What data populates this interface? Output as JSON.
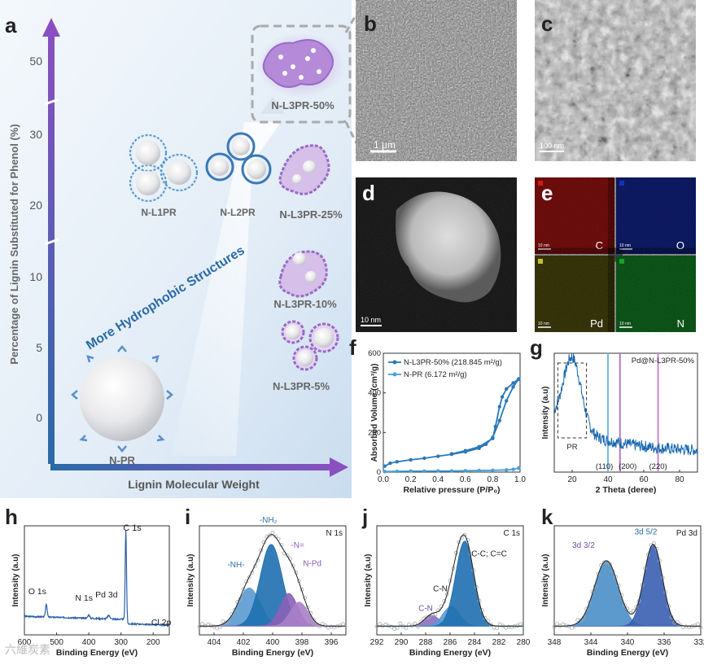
{
  "panel_letters": [
    "a",
    "b",
    "c",
    "d",
    "e",
    "f",
    "g",
    "h",
    "i",
    "j",
    "k"
  ],
  "panel_a": {
    "y_axis_label": "Percentage of Lignin Substituted for Phenol (%)",
    "x_axis_label": "Lignin Molecular Weight",
    "y_ticks": [
      "0",
      "5",
      "10",
      "20",
      "30",
      "50"
    ],
    "arrow_text": "More Hydrophobic Structures",
    "structures": [
      "N-PR",
      "N-L1PR",
      "N-L2PR",
      "N-L3PR-5%",
      "N-L3PR-10%",
      "N-L3PR-25%",
      "N-L3PR-50%"
    ],
    "colors": {
      "blue": "#2f6fa8",
      "purple": "#8a5bb8",
      "bg": "#dde9f5"
    }
  },
  "panel_b": {
    "scale_bar": "1 μm"
  },
  "panel_c": {
    "scale_bar": "100 nm"
  },
  "panel_d": {
    "scale_bar": "10 nm"
  },
  "panel_e": {
    "maps": [
      {
        "element": "C",
        "color": "#d01818",
        "bar": "10 nm"
      },
      {
        "element": "O",
        "color": "#1830b8",
        "bar": "10 nm"
      },
      {
        "element": "Pd",
        "color": "#c8c020",
        "bar": "10 nm"
      },
      {
        "element": "N",
        "color": "#18a030",
        "bar": "10 nm"
      }
    ]
  },
  "chart_data": [
    {
      "id": "f",
      "type": "line",
      "xlabel": "Relative pressure (P/P₀)",
      "ylabel": "Absorbed Volume (cm³/g)",
      "xlim": [
        0,
        1.0
      ],
      "ylim": [
        0,
        600
      ],
      "x_ticks": [
        "0.0",
        "0.2",
        "0.4",
        "0.6",
        "0.8",
        "1.0"
      ],
      "y_ticks": [
        "0",
        "200",
        "400",
        "600"
      ],
      "legend": [
        "N-L3PR-50% (218.845 m²/g)",
        "N-PR (6.172 m²/g)"
      ],
      "series": [
        {
          "name": "N-L3PR-50% (218.845 m²/g)",
          "color": "#2a78b8",
          "x": [
            0.01,
            0.05,
            0.1,
            0.2,
            0.3,
            0.4,
            0.5,
            0.6,
            0.7,
            0.75,
            0.8,
            0.85,
            0.9,
            0.95,
            0.99
          ],
          "y": [
            30,
            45,
            52,
            62,
            70,
            80,
            90,
            102,
            120,
            140,
            175,
            260,
            360,
            430,
            470
          ]
        },
        {
          "name": "N-L3PR-50% desorption",
          "color": "#2a78b8",
          "x": [
            0.99,
            0.95,
            0.9,
            0.87,
            0.85,
            0.82,
            0.8,
            0.7,
            0.6,
            0.5
          ],
          "y": [
            470,
            450,
            420,
            380,
            330,
            230,
            170,
            128,
            108,
            92
          ]
        },
        {
          "name": "N-PR (6.172 m²/g)",
          "color": "#4aa0d8",
          "x": [
            0.01,
            0.1,
            0.2,
            0.3,
            0.4,
            0.5,
            0.6,
            0.7,
            0.8,
            0.9,
            0.95,
            0.99
          ],
          "y": [
            3,
            4,
            5,
            5,
            6,
            6,
            7,
            8,
            9,
            11,
            14,
            20
          ]
        }
      ]
    },
    {
      "id": "g",
      "type": "line",
      "title": "Pd@N-L3PR-50%",
      "xlabel": "2 Theta (deree)",
      "ylabel": "Intensity (a.u)",
      "xlim": [
        10,
        90
      ],
      "x_ticks": [
        "20",
        "40",
        "60",
        "80"
      ],
      "annotations": [
        "PR",
        "(110)",
        "(200)",
        "(220)"
      ],
      "ref_lines": [
        {
          "x": 40,
          "color": "#7ab8e0"
        },
        {
          "x": 46.7,
          "color": "#b07ac8"
        },
        {
          "x": 68,
          "color": "#c88ac8"
        }
      ],
      "series": [
        {
          "name": "",
          "color": "#1868b0"
        }
      ]
    },
    {
      "id": "h",
      "type": "line",
      "xlabel": "Binding Energy (eV)",
      "ylabel": "Intensity (a.u)",
      "xlim": [
        600,
        150
      ],
      "x_ticks": [
        "600",
        "500",
        "400",
        "300",
        "200"
      ],
      "annotations": [
        "O 1s",
        "N 1s",
        "Pd 3d",
        "C 1s",
        "Cl 2p"
      ],
      "series": [
        {
          "name": "",
          "color": "#2a5fa8"
        }
      ]
    },
    {
      "id": "i",
      "type": "line",
      "title": "N 1s",
      "xlabel": "Binding Energy (eV)",
      "ylabel": "Intensity (a.u)",
      "xlim": [
        405,
        395
      ],
      "x_ticks": [
        "404",
        "402",
        "400",
        "398",
        "396"
      ],
      "annotations": [
        "-NH-",
        "-NH₂",
        "-N=",
        "N-Pd"
      ],
      "peaks": [
        {
          "label": "-NH-",
          "center": 401.6,
          "color": "#5a9ad0"
        },
        {
          "label": "-NH₂",
          "center": 400.1,
          "color": "#1e6fb0"
        },
        {
          "label": "-N=",
          "center": 398.9,
          "color": "#8a60b8"
        },
        {
          "label": "N-Pd",
          "center": 398.2,
          "color": "#a880c8"
        }
      ]
    },
    {
      "id": "j",
      "type": "line",
      "title": "C 1s",
      "xlabel": "Binding Energy (eV)",
      "ylabel": "Intensity (a.u)",
      "xlim": [
        292,
        280
      ],
      "x_ticks": [
        "292",
        "290",
        "288",
        "286",
        "284",
        "282",
        "280"
      ],
      "annotations": [
        "C-N",
        "C-N",
        "C-C; C=C"
      ],
      "peaks": [
        {
          "label": "C-N",
          "center": 287.5,
          "color": "#8a70c0"
        },
        {
          "label": "C-N",
          "center": 285.9,
          "color": "#5a9ad0"
        },
        {
          "label": "C-C; C=C",
          "center": 284.8,
          "color": "#1e6fb0"
        }
      ]
    },
    {
      "id": "k",
      "type": "line",
      "title": "Pd 3d",
      "xlabel": "Binding Energy (eV)",
      "ylabel": "Intensity (a.u)",
      "xlim": [
        348,
        332
      ],
      "x_ticks": [
        "348",
        "344",
        "340",
        "336",
        "332"
      ],
      "annotations": [
        "3d 3/2",
        "3d 5/2"
      ],
      "peaks": [
        {
          "label": "3d 3/2",
          "center": 342.3,
          "color": "#4a8ec8"
        },
        {
          "label": "3d 5/2",
          "center": 337.2,
          "color": "#3a5eb0"
        }
      ]
    }
  ],
  "watermark": "六維炭素"
}
